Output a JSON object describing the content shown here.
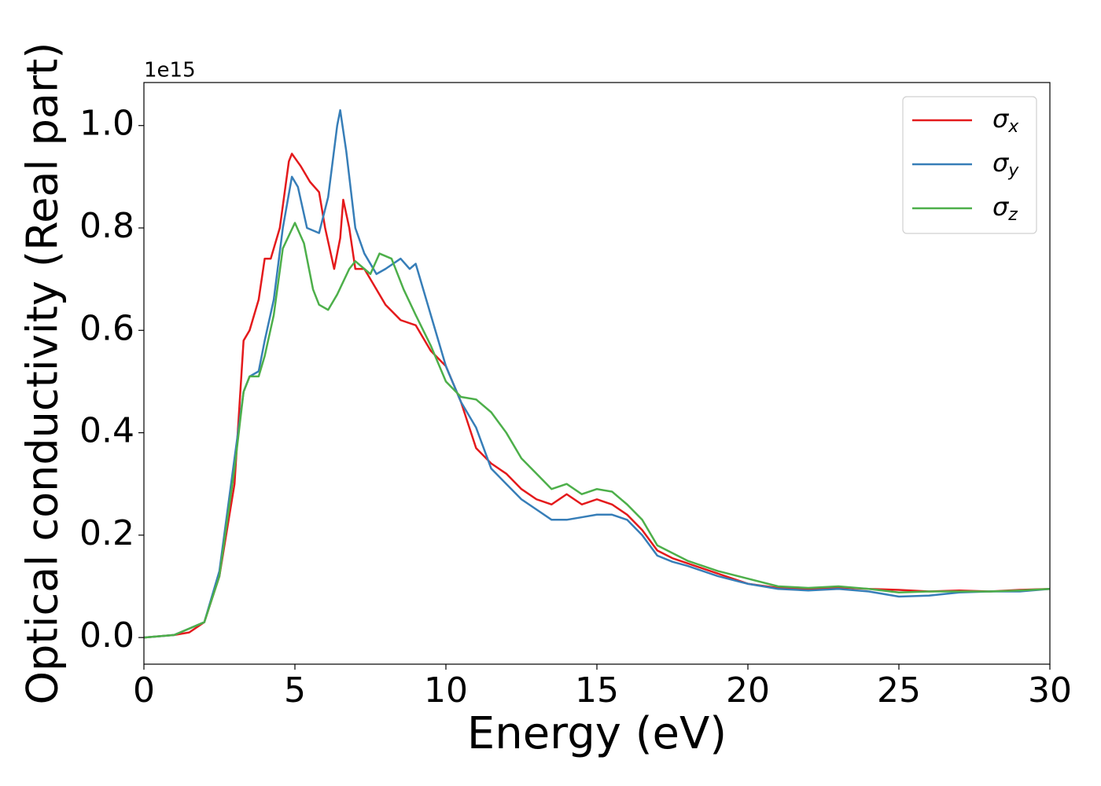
{
  "chart_data": {
    "type": "line",
    "xlabel": "Energy (eV)",
    "ylabel": "Optical conductivity (Real part)",
    "y_offset_text": "1e15",
    "xlim": [
      0,
      30
    ],
    "ylim": [
      -0.052,
      1.084
    ],
    "xticks": [
      0,
      5,
      10,
      15,
      20,
      25,
      30
    ],
    "yticks": [
      {
        "value": 0,
        "label": "0.0"
      },
      0.2,
      0.4,
      0.6,
      0.8,
      {
        "value": 1,
        "label": "1.0"
      }
    ],
    "legend": "upper right",
    "series": [
      {
        "name": "σx",
        "color": "#e41a1c",
        "x": [
          0,
          1,
          1.5,
          2,
          2.5,
          3,
          3.3,
          3.5,
          3.8,
          4,
          4.2,
          4.5,
          4.8,
          4.9,
          5.2,
          5.5,
          5.8,
          6,
          6.3,
          6.5,
          6.6,
          6.8,
          7,
          7.3,
          7.6,
          8,
          8.5,
          9,
          9.5,
          10,
          10.5,
          11,
          11.5,
          12,
          12.5,
          13,
          13.5,
          14,
          14.5,
          15,
          15.5,
          16,
          16.5,
          17,
          17.5,
          18,
          19,
          20,
          21,
          22,
          23,
          24,
          25,
          26,
          27,
          28,
          29,
          30
        ],
        "values": [
          0,
          0.005,
          0.01,
          0.03,
          0.12,
          0.3,
          0.58,
          0.6,
          0.66,
          0.74,
          0.74,
          0.8,
          0.93,
          0.945,
          0.92,
          0.89,
          0.87,
          0.8,
          0.72,
          0.78,
          0.855,
          0.8,
          0.72,
          0.72,
          0.69,
          0.65,
          0.62,
          0.61,
          0.56,
          0.53,
          0.46,
          0.37,
          0.34,
          0.32,
          0.29,
          0.27,
          0.26,
          0.28,
          0.26,
          0.27,
          0.26,
          0.24,
          0.21,
          0.17,
          0.155,
          0.145,
          0.125,
          0.105,
          0.097,
          0.095,
          0.098,
          0.095,
          0.093,
          0.09,
          0.092,
          0.09,
          0.093,
          0.095
        ]
      },
      {
        "name": "σy",
        "color": "#377eb8",
        "x": [
          0,
          1,
          2,
          2.5,
          3,
          3.3,
          3.5,
          3.8,
          4,
          4.3,
          4.6,
          4.9,
          5.1,
          5.4,
          5.8,
          6.1,
          6.4,
          6.5,
          6.7,
          7,
          7.3,
          7.7,
          8,
          8.5,
          8.8,
          9,
          9.5,
          10,
          10.5,
          11,
          11.5,
          12,
          12.5,
          13,
          13.5,
          14,
          14.5,
          15,
          15.5,
          16,
          16.5,
          17,
          17.5,
          18,
          19,
          20,
          21,
          22,
          23,
          24,
          25,
          26,
          27,
          28,
          29,
          30
        ],
        "values": [
          0,
          0.005,
          0.03,
          0.13,
          0.35,
          0.48,
          0.51,
          0.52,
          0.58,
          0.66,
          0.8,
          0.9,
          0.88,
          0.8,
          0.79,
          0.86,
          1.0,
          1.03,
          0.95,
          0.8,
          0.75,
          0.71,
          0.72,
          0.74,
          0.72,
          0.73,
          0.63,
          0.53,
          0.46,
          0.41,
          0.33,
          0.3,
          0.27,
          0.25,
          0.23,
          0.23,
          0.235,
          0.24,
          0.24,
          0.23,
          0.2,
          0.16,
          0.148,
          0.14,
          0.12,
          0.105,
          0.095,
          0.092,
          0.095,
          0.09,
          0.08,
          0.082,
          0.088,
          0.09,
          0.09,
          0.095
        ]
      },
      {
        "name": "σz",
        "color": "#4daf4a",
        "x": [
          0,
          1,
          2,
          2.5,
          3,
          3.3,
          3.5,
          3.8,
          4,
          4.3,
          4.6,
          5,
          5.3,
          5.6,
          5.8,
          6.1,
          6.4,
          6.8,
          7,
          7.3,
          7.5,
          7.8,
          8.2,
          8.6,
          9,
          9.5,
          10,
          10.5,
          11,
          11.5,
          12,
          12.5,
          13,
          13.5,
          14,
          14.5,
          15,
          15.5,
          16,
          16.5,
          17,
          17.5,
          18,
          19,
          20,
          21,
          22,
          23,
          24,
          25,
          26,
          27,
          28,
          29,
          30
        ],
        "values": [
          0,
          0.005,
          0.03,
          0.12,
          0.33,
          0.48,
          0.51,
          0.51,
          0.55,
          0.63,
          0.76,
          0.81,
          0.77,
          0.68,
          0.65,
          0.64,
          0.67,
          0.72,
          0.735,
          0.72,
          0.71,
          0.75,
          0.74,
          0.68,
          0.63,
          0.57,
          0.5,
          0.47,
          0.465,
          0.44,
          0.4,
          0.35,
          0.32,
          0.29,
          0.3,
          0.28,
          0.29,
          0.285,
          0.26,
          0.23,
          0.18,
          0.165,
          0.15,
          0.13,
          0.115,
          0.1,
          0.097,
          0.1,
          0.095,
          0.088,
          0.09,
          0.09,
          0.09,
          0.092,
          0.095
        ]
      }
    ]
  }
}
